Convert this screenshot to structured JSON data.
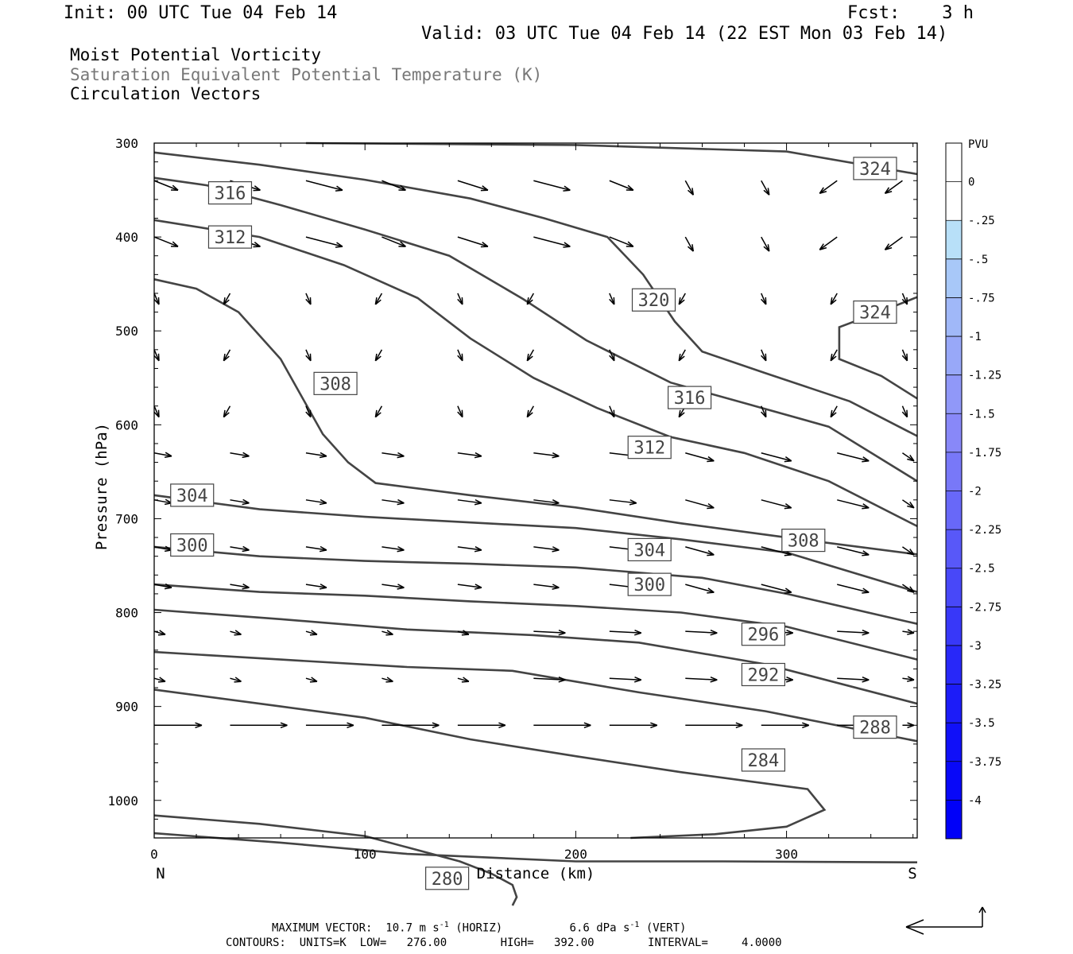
{
  "header": {
    "init": "Init: 00 UTC Tue 04 Feb 14",
    "fcst": "Fcst:    3 h",
    "valid": "Valid: 03 UTC Tue 04 Feb 14 (22 EST Mon 03 Feb 14)",
    "fields": [
      "Moist Potential Vorticity",
      "Saturation Equivalent Potential Temperature (K)",
      "Circulation Vectors"
    ]
  },
  "footer": {
    "max_vector_label": "MAXIMUM VECTOR:",
    "horiz_value": "10.7 m s",
    "horiz_unit": " (HORIZ)",
    "vert_value": "6.6 dPa s",
    "vert_unit": " (VERT)",
    "exp": "-1",
    "contours": "CONTOURS:  UNITS=K  LOW=   276.00        HIGH=   392.00        INTERVAL=     4.0000"
  },
  "colors": {
    "contour": "#444444",
    "label_gray": "#777777"
  },
  "chart_data": {
    "type": "contour",
    "xlabel": "Distance (km)",
    "ylabel": "Pressure (hPa)",
    "xlim": [
      0,
      362
    ],
    "ylim": [
      1040,
      300
    ],
    "x_ticks": [
      0,
      100,
      200,
      300
    ],
    "y_ticks": [
      300,
      400,
      500,
      600,
      700,
      800,
      900,
      1000
    ],
    "left_end_label": "N",
    "right_end_label": "S",
    "contours": [
      {
        "value": 324,
        "label": "324",
        "points": [
          [
            72,
            300
          ],
          [
            200,
            302
          ],
          [
            300,
            309
          ],
          [
            362,
            333
          ]
        ],
        "labels_at": [
          [
            342,
            327
          ]
        ]
      },
      {
        "value": 324,
        "label": "324",
        "points": [
          [
            362,
            464
          ],
          [
            344,
            480
          ],
          [
            325,
            496
          ],
          [
            325,
            530
          ],
          [
            345,
            548
          ],
          [
            362,
            572
          ]
        ],
        "labels_at": [
          [
            342,
            480
          ]
        ]
      },
      {
        "value": 320,
        "label": "320",
        "points": [
          [
            0,
            310
          ],
          [
            50,
            323
          ],
          [
            100,
            339
          ],
          [
            150,
            359
          ],
          [
            185,
            380
          ],
          [
            215,
            400
          ],
          [
            232,
            440
          ],
          [
            247,
            490
          ],
          [
            260,
            522
          ],
          [
            290,
            545
          ],
          [
            330,
            575
          ],
          [
            362,
            612
          ]
        ],
        "labels_at": [
          [
            237,
            467
          ]
        ]
      },
      {
        "value": 316,
        "label": "316",
        "points": [
          [
            0,
            337
          ],
          [
            25,
            345
          ],
          [
            60,
            366
          ],
          [
            100,
            392
          ],
          [
            140,
            420
          ],
          [
            175,
            466
          ],
          [
            205,
            510
          ],
          [
            245,
            555
          ],
          [
            285,
            580
          ],
          [
            320,
            602
          ],
          [
            362,
            660
          ]
        ],
        "labels_at": [
          [
            36,
            353
          ],
          [
            254,
            571
          ]
        ]
      },
      {
        "value": 312,
        "label": "312",
        "points": [
          [
            0,
            382
          ],
          [
            50,
            400
          ],
          [
            90,
            430
          ],
          [
            125,
            465
          ],
          [
            150,
            508
          ],
          [
            180,
            550
          ],
          [
            210,
            582
          ],
          [
            245,
            613
          ],
          [
            280,
            630
          ],
          [
            320,
            660
          ],
          [
            362,
            708
          ]
        ],
        "labels_at": [
          [
            36,
            400
          ],
          [
            235,
            624
          ]
        ]
      },
      {
        "value": 308,
        "label": "308",
        "points": [
          [
            0,
            445
          ],
          [
            20,
            455
          ],
          [
            40,
            480
          ],
          [
            60,
            530
          ],
          [
            70,
            570
          ],
          [
            80,
            610
          ],
          [
            92,
            640
          ],
          [
            105,
            662
          ],
          [
            150,
            675
          ],
          [
            200,
            688
          ],
          [
            250,
            705
          ],
          [
            300,
            720
          ],
          [
            362,
            738
          ]
        ],
        "labels_at": [
          [
            86,
            556
          ],
          [
            308,
            723
          ]
        ]
      },
      {
        "value": 304,
        "label": "304",
        "points": [
          [
            0,
            675
          ],
          [
            50,
            690
          ],
          [
            100,
            698
          ],
          [
            150,
            704
          ],
          [
            200,
            710
          ],
          [
            250,
            722
          ],
          [
            300,
            736
          ],
          [
            362,
            778
          ]
        ],
        "labels_at": [
          [
            18,
            675
          ],
          [
            235,
            733
          ]
        ]
      },
      {
        "value": 300,
        "label": "300",
        "points": [
          [
            0,
            730
          ],
          [
            50,
            740
          ],
          [
            100,
            745
          ],
          [
            150,
            748
          ],
          [
            200,
            752
          ],
          [
            260,
            763
          ],
          [
            300,
            780
          ],
          [
            362,
            812
          ]
        ],
        "labels_at": [
          [
            18,
            728
          ],
          [
            235,
            770
          ]
        ]
      },
      {
        "value": 296,
        "label": "296",
        "points": [
          [
            0,
            770
          ],
          [
            50,
            778
          ],
          [
            100,
            782
          ],
          [
            150,
            788
          ],
          [
            200,
            793
          ],
          [
            250,
            800
          ],
          [
            300,
            815
          ],
          [
            362,
            850
          ]
        ],
        "labels_at": [
          [
            289,
            823
          ]
        ]
      },
      {
        "value": 292,
        "label": "292",
        "points": [
          [
            0,
            797
          ],
          [
            60,
            807
          ],
          [
            120,
            818
          ],
          [
            180,
            824
          ],
          [
            230,
            832
          ],
          [
            290,
            855
          ],
          [
            362,
            897
          ]
        ],
        "labels_at": [
          [
            289,
            866
          ]
        ]
      },
      {
        "value": 288,
        "label": "288",
        "points": [
          [
            0,
            842
          ],
          [
            60,
            850
          ],
          [
            120,
            858
          ],
          [
            170,
            862
          ],
          [
            230,
            885
          ],
          [
            290,
            905
          ],
          [
            362,
            937
          ]
        ],
        "labels_at": [
          [
            342,
            922
          ]
        ]
      },
      {
        "value": 284,
        "label": "284",
        "points": [
          [
            0,
            882
          ],
          [
            60,
            900
          ],
          [
            100,
            912
          ],
          [
            150,
            935
          ],
          [
            200,
            953
          ],
          [
            250,
            970
          ],
          [
            310,
            988
          ],
          [
            318,
            1010
          ],
          [
            300,
            1028
          ],
          [
            266,
            1036
          ],
          [
            226,
            1040
          ]
        ],
        "labels_at": [
          [
            289,
            957
          ]
        ]
      },
      {
        "value": 280,
        "label": "280",
        "points": [
          [
            0,
            1016
          ],
          [
            50,
            1025
          ],
          [
            100,
            1038
          ],
          [
            120,
            1050
          ],
          [
            145,
            1065
          ],
          [
            160,
            1078
          ],
          [
            170,
            1090
          ],
          [
            172,
            1103
          ],
          [
            170,
            1112
          ]
        ],
        "labels_at": [
          [
            139,
            1083
          ]
        ]
      },
      {
        "value": 276,
        "label": "",
        "points": [
          [
            0,
            1035
          ],
          [
            60,
            1045
          ],
          [
            120,
            1057
          ],
          [
            200,
            1065
          ],
          [
            270,
            1065
          ],
          [
            362,
            1066
          ]
        ],
        "labels_at": []
      }
    ],
    "vector_rows_pressure": [
      340,
      400,
      460,
      520,
      580,
      630,
      680,
      730,
      770,
      820,
      870,
      920
    ],
    "vector_columns_km": [
      0,
      36,
      72,
      108,
      144,
      180,
      216,
      252,
      288,
      324,
      355
    ],
    "colorbar": {
      "title": "PVU",
      "levels": [
        "0",
        "-.25",
        "-.5",
        "-.75",
        "-1",
        "-1.25",
        "-1.5",
        "-1.75",
        "-2",
        "-2.25",
        "-2.5",
        "-2.75",
        "-3",
        "-3.25",
        "-3.5",
        "-3.75",
        "-4"
      ],
      "colors": [
        "#ffffff",
        "#ffffff",
        "#b8e0f8",
        "#a8c8f8",
        "#a0b8f8",
        "#98a8f8",
        "#9098f8",
        "#8888f8",
        "#7878f8",
        "#6868f8",
        "#5858f8",
        "#4848f8",
        "#3838f8",
        "#2828f8",
        "#1c1cf8",
        "#1010f8",
        "#0808f8",
        "#0000f8"
      ]
    }
  }
}
